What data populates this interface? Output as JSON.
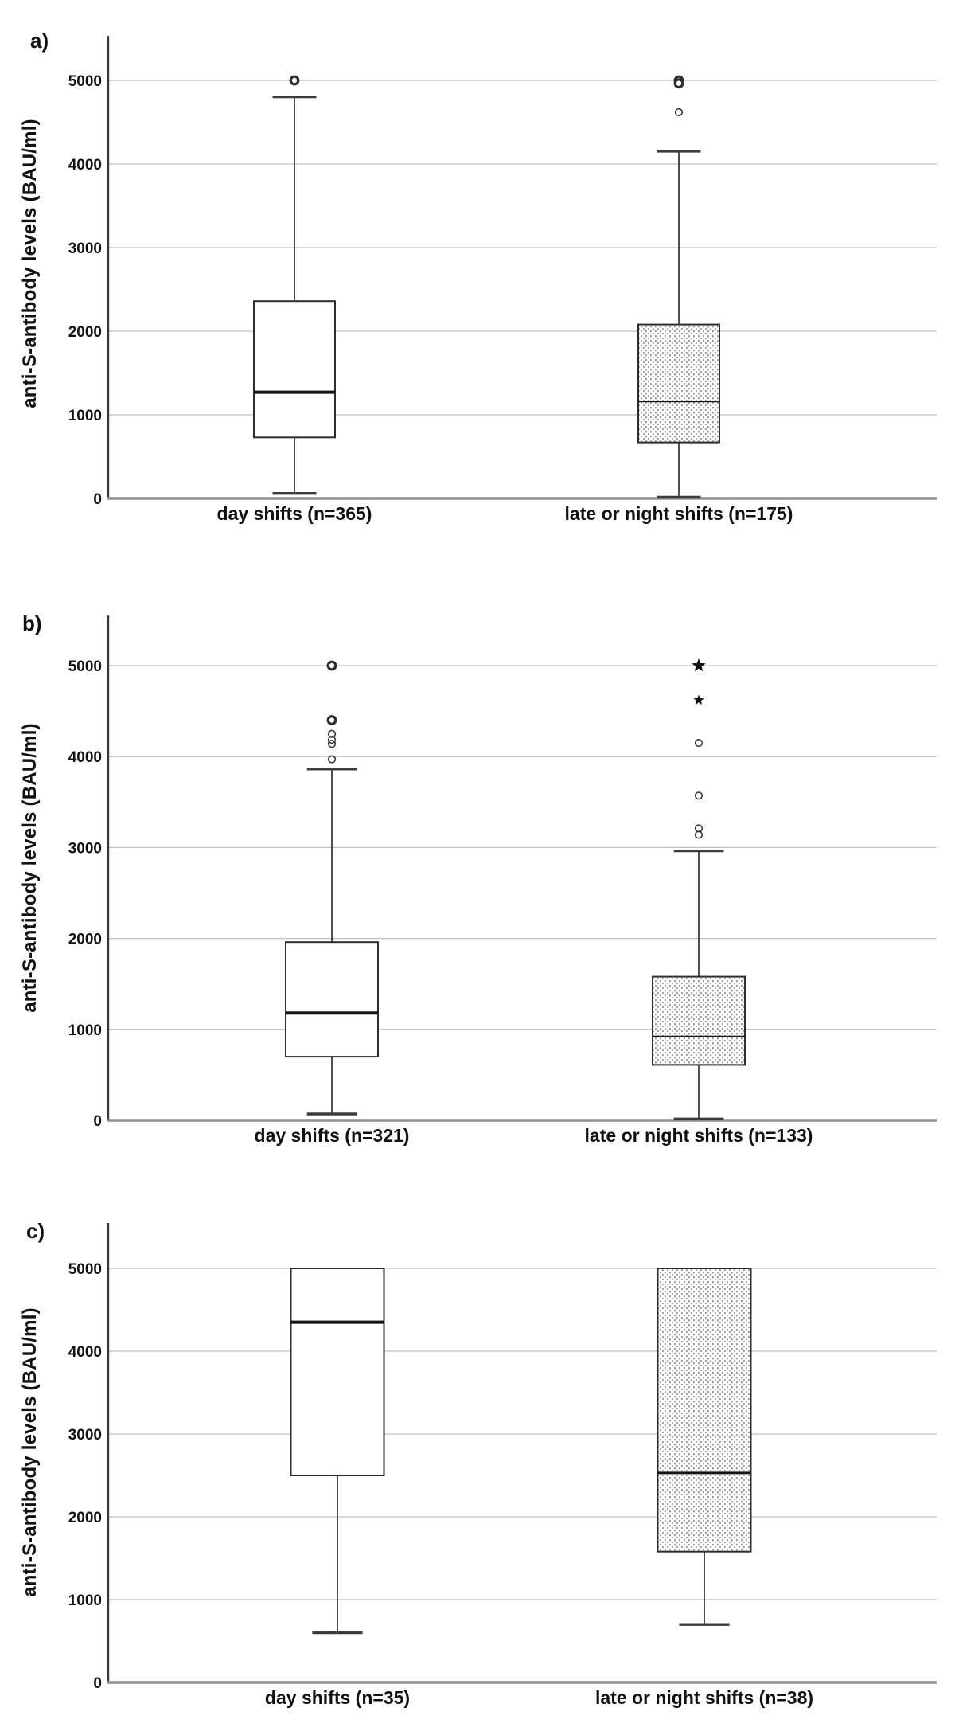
{
  "figure": {
    "ylabel": "anti-S-antibody levels (BAU/ml)",
    "colors": {
      "text": "#111111",
      "gridline": "#c0c0c0",
      "zero_line": "#8f8f8f",
      "axis_line": "#3c3c3c",
      "box_outline": "#2d2d2d",
      "whisker": "#3c3c3c",
      "median": "#151515",
      "pattern_dot": "#9a9a9a",
      "box_fill_day": "#ffffff"
    }
  },
  "chart_data": [
    {
      "type": "box",
      "panel_label": "a)",
      "ylabel": "anti-S-antibody levels (BAU/ml)",
      "xlabel": "",
      "ylim": [
        0,
        5530
      ],
      "yticks": [
        0,
        1000,
        2000,
        3000,
        4000,
        5000
      ],
      "grid": true,
      "legend_position": "none",
      "groups": [
        {
          "label": "day shifts (n=365)",
          "fill": "white",
          "whisker_low": 60,
          "q1": 730,
          "median": 1270,
          "q3": 2360,
          "whisker_high": 4800,
          "outliers": [
            {
              "value": 5000,
              "marker": "circle-bold"
            }
          ]
        },
        {
          "label": "late or night shifts (n=175)",
          "fill": "dotted",
          "whisker_low": 15,
          "q1": 670,
          "median": 1160,
          "q3": 2080,
          "whisker_high": 4150,
          "outliers": [
            {
              "value": 5000,
              "marker": "circle-bold"
            },
            {
              "value": 4965,
              "marker": "circle-bold"
            },
            {
              "value": 4620,
              "marker": "circle"
            }
          ]
        }
      ]
    },
    {
      "type": "box",
      "panel_label": "b)",
      "ylabel": "anti-S-antibody levels (BAU/ml)",
      "xlabel": "",
      "ylim": [
        0,
        5530
      ],
      "yticks": [
        0,
        1000,
        2000,
        3000,
        4000,
        5000
      ],
      "grid": true,
      "legend_position": "none",
      "groups": [
        {
          "label": "day shifts (n=321)",
          "fill": "white",
          "whisker_low": 70,
          "q1": 700,
          "median": 1180,
          "q3": 1960,
          "whisker_high": 3860,
          "outliers": [
            {
              "value": 5000,
              "marker": "circle-bold"
            },
            {
              "value": 4400,
              "marker": "circle-bold"
            },
            {
              "value": 4250,
              "marker": "circle"
            },
            {
              "value": 4185,
              "marker": "circle"
            },
            {
              "value": 4140,
              "marker": "circle"
            },
            {
              "value": 3970,
              "marker": "circle"
            }
          ]
        },
        {
          "label": "late or night shifts (n=133)",
          "fill": "dotted",
          "whisker_low": 15,
          "q1": 610,
          "median": 920,
          "q3": 1580,
          "whisker_high": 2960,
          "outliers": [
            {
              "value": 5000,
              "marker": "star-large"
            },
            {
              "value": 4620,
              "marker": "star"
            },
            {
              "value": 4150,
              "marker": "circle"
            },
            {
              "value": 3570,
              "marker": "circle"
            },
            {
              "value": 3210,
              "marker": "circle"
            },
            {
              "value": 3140,
              "marker": "circle"
            }
          ]
        }
      ]
    },
    {
      "type": "box",
      "panel_label": "c)",
      "ylabel": "anti-S-antibody levels (BAU/ml)",
      "xlabel": "",
      "ylim": [
        0,
        5530
      ],
      "yticks": [
        0,
        1000,
        2000,
        3000,
        4000,
        5000
      ],
      "grid": true,
      "legend_position": "none",
      "groups": [
        {
          "label": "day shifts (n=35)",
          "fill": "white",
          "whisker_low": 600,
          "q1": 2500,
          "median": 4350,
          "q3": 5000,
          "whisker_high": null,
          "outliers": []
        },
        {
          "label": "late or night shifts (n=38)",
          "fill": "dotted",
          "whisker_low": 700,
          "q1": 1580,
          "median": 2530,
          "q3": 5000,
          "whisker_high": null,
          "outliers": []
        }
      ]
    }
  ]
}
